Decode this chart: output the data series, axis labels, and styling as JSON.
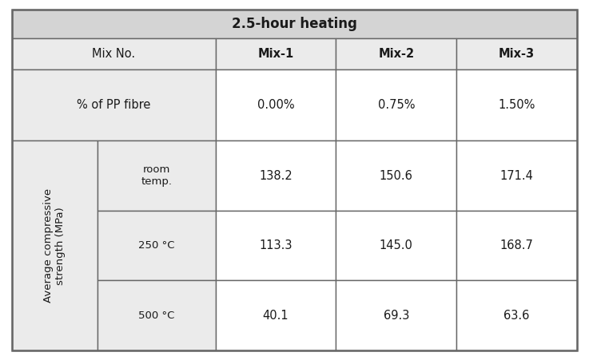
{
  "title": "2.5-hour heating",
  "col_headers": [
    "Mix-1",
    "Mix-2",
    "Mix-3"
  ],
  "row1_label": "Mix No.",
  "row2_label": "% of PP fibre",
  "pp_fibre_values": [
    "0.00%",
    "0.75%",
    "1.50%"
  ],
  "row_group_label": "Average compressive\nstrength (MPa)",
  "sub_rows": [
    {
      "label": "room\ntemp.",
      "values": [
        "138.2",
        "150.6",
        "171.4"
      ]
    },
    {
      "label": "250 °C",
      "values": [
        "113.3",
        "145.0",
        "168.7"
      ]
    },
    {
      "label": "500 °C",
      "values": [
        "40.1",
        "69.3",
        "63.6"
      ]
    }
  ],
  "header_bg": "#d4d4d4",
  "cell_bg_light": "#ebebeb",
  "cell_bg_white": "#ffffff",
  "border_color": "#666666",
  "text_color": "#1a1a1a",
  "title_fontsize": 12,
  "header_fontsize": 10.5,
  "cell_fontsize": 10.5,
  "label_fontsize": 9.5,
  "fig_w": 7.37,
  "fig_h": 4.51,
  "dpi": 100
}
